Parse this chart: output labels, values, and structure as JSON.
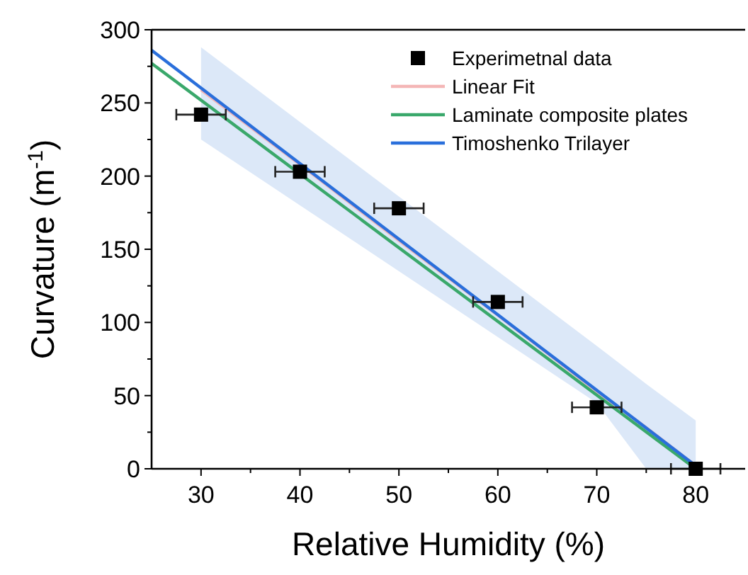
{
  "chart_data": {
    "type": "line",
    "xlabel": "Relative Humidity (%)",
    "ylabel": "Curvature (m$^{-1}$)",
    "xlim": [
      25,
      85
    ],
    "xticks": [
      30,
      40,
      50,
      60,
      70,
      80
    ],
    "ylim": [
      0,
      300
    ],
    "yticks": [
      0,
      50,
      100,
      150,
      200,
      250,
      300
    ],
    "legend": "top right",
    "grid": false,
    "series": [
      {
        "name": "Experimetnal data",
        "type": "scatter",
        "marker": "square",
        "color": "#000000",
        "x": [
          30,
          40,
          50,
          60,
          70,
          80
        ],
        "values": [
          242,
          203,
          178,
          114,
          42,
          0
        ],
        "xerrors": [
          2.5,
          2.5,
          2.5,
          2.5,
          2.5,
          2.5
        ]
      },
      {
        "name": "Linear Fit",
        "color": "#f4b6b6",
        "x": [
          30,
          40,
          50,
          60,
          70,
          75,
          80
        ],
        "values": [
          259,
          208,
          156,
          105,
          53,
          28,
          2
        ],
        "lower": [
          225,
          180,
          135,
          90,
          45,
          0,
          0
        ],
        "upper": [
          288,
          237,
          186,
          135,
          84,
          58,
          33
        ]
      },
      {
        "name": "Laminate composite plates",
        "color": "#3aa86b",
        "x": [
          25,
          80
        ],
        "values": [
          277,
          0
        ]
      },
      {
        "name": "Timoshenko Trilayer",
        "color": "#2a6fdb",
        "x": [
          25,
          80
        ],
        "values": [
          286,
          2
        ]
      }
    ]
  }
}
